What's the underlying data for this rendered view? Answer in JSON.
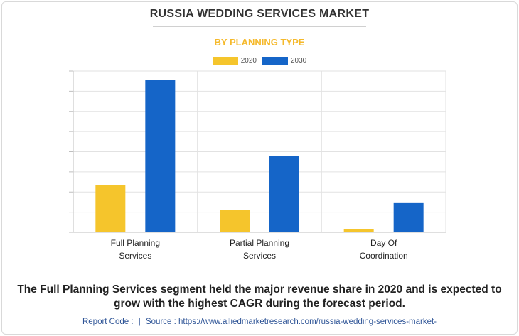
{
  "title": "RUSSIA WEDDING SERVICES MARKET",
  "subtitle": "BY PLANNING TYPE",
  "caption_line1": "The Full Planning Services segment held the major revenue share in 2020 and is expected to",
  "caption_line2": "grow with the highest CAGR during the forecast period.",
  "footer": {
    "report_code": "Report Code :",
    "separator": "|",
    "source": "Source : https://www.alliedmarketresearch.com/russia-wedding-services-market-"
  },
  "colors": {
    "2020": "#f5c52c",
    "2030": "#1565c8",
    "grid": "#e2e2e2",
    "axis": "#bfbfbf"
  },
  "chart_data": {
    "type": "bar",
    "categories": [
      [
        "Full Planning",
        "Services"
      ],
      [
        "Partial Planning",
        "Services"
      ],
      [
        "Day Of",
        "Coordination"
      ]
    ],
    "series": [
      {
        "name": "2020",
        "values": [
          2.35,
          1.1,
          0.16
        ]
      },
      {
        "name": "2030",
        "values": [
          7.55,
          3.8,
          1.45
        ]
      }
    ],
    "ylim": [
      0,
      8
    ],
    "y_ticks": [
      0,
      1,
      2,
      3,
      4,
      5,
      6,
      7,
      8
    ],
    "y_tick_labels_visible": false,
    "grid": true,
    "legend": "top-center"
  }
}
